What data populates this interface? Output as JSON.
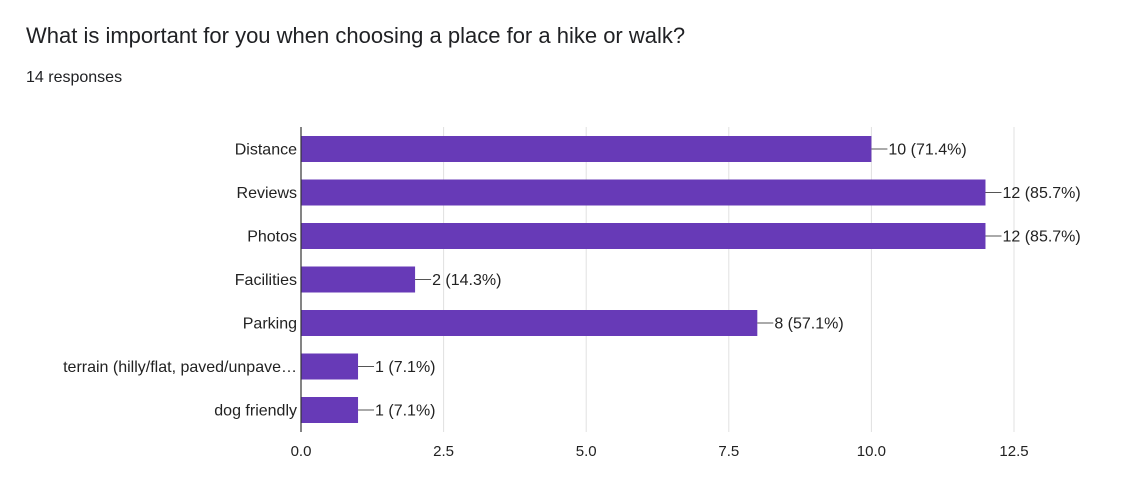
{
  "question": {
    "title": "What is important for you when choosing a place for a hike or walk?",
    "response_count": "14 responses"
  },
  "colors": {
    "bar": "#673ab7",
    "grid": "#e0e0e0",
    "axis": "#333333",
    "text": "#222222"
  },
  "chart_data": {
    "type": "bar",
    "orientation": "horizontal",
    "categories": [
      "Distance",
      "Reviews",
      "Photos",
      "Facilities",
      "Parking",
      "terrain (hilly/flat, paved/unpave…",
      "dog friendly"
    ],
    "values": [
      10,
      12,
      12,
      2,
      8,
      1,
      1
    ],
    "value_labels": [
      "10 (71.4%)",
      "12 (85.7%)",
      "12 (85.7%)",
      "2 (14.3%)",
      "8 (57.1%)",
      "1 (7.1%)",
      "1 (7.1%)"
    ],
    "xlim": [
      0,
      12.5
    ],
    "xticks": [
      0,
      2.5,
      5,
      7.5,
      10,
      12.5
    ],
    "xtick_labels": [
      "0.0",
      "2.5",
      "5.0",
      "7.5",
      "10.0",
      "12.5"
    ],
    "grid": true
  }
}
